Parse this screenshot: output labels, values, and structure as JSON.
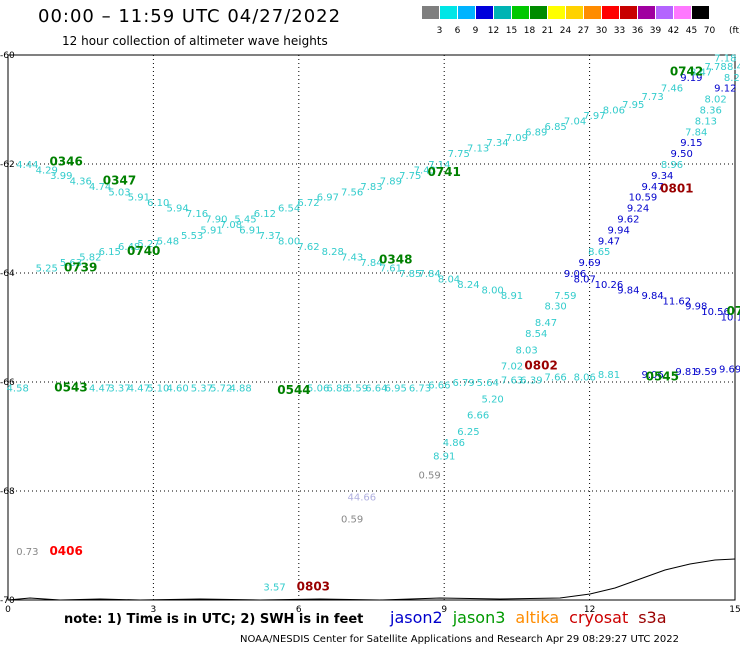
{
  "header": {
    "title": "00:00 – 11:59 UTC 04/27/2022",
    "subtitle": "12 hour collection of altimeter wave heights"
  },
  "legend": {
    "colors": [
      "#7f7f7f",
      "#00e6e6",
      "#00b4ff",
      "#0000dc",
      "#00b4b4",
      "#00c800",
      "#008c00",
      "#ffff00",
      "#ffd200",
      "#ff8c00",
      "#ff0000",
      "#c80000",
      "#a000a0",
      "#b464ff",
      "#ff78ff",
      "#000000"
    ],
    "labels": [
      "3",
      "6",
      "9",
      "12",
      "15",
      "18",
      "21",
      "24",
      "27",
      "30",
      "33",
      "36",
      "39",
      "42",
      "45",
      "70"
    ],
    "unit": "(ft)"
  },
  "map": {
    "x_ticks": [
      "0",
      "3",
      "6",
      "9",
      "12",
      "15"
    ],
    "y_ticks": [
      "-60",
      "-62",
      "-64",
      "-66",
      "-68",
      "-70"
    ],
    "point_colors": {
      "cyan": "#33cccc",
      "blue": "#0000cc",
      "gray": "#888888",
      "lavender": "#b0b0e0",
      "green": "#008000",
      "darkred": "#990000",
      "red": "#ff0000"
    },
    "points": [
      {
        "t": "4.44",
        "lon": 0.4,
        "lat": -62.0,
        "c": "cyan"
      },
      {
        "t": "4.29",
        "lon": 0.8,
        "lat": -62.1,
        "c": "cyan"
      },
      {
        "t": "3.99",
        "lon": 1.1,
        "lat": -62.2,
        "c": "cyan"
      },
      {
        "t": "4.36",
        "lon": 1.5,
        "lat": -62.3,
        "c": "cyan"
      },
      {
        "t": "4.74",
        "lon": 1.9,
        "lat": -62.4,
        "c": "cyan"
      },
      {
        "t": "5.03",
        "lon": 2.3,
        "lat": -62.5,
        "c": "cyan"
      },
      {
        "t": "5.91",
        "lon": 2.7,
        "lat": -62.6,
        "c": "cyan"
      },
      {
        "t": "6.10",
        "lon": 3.1,
        "lat": -62.7,
        "c": "cyan"
      },
      {
        "t": "5.94",
        "lon": 3.5,
        "lat": -62.8,
        "c": "cyan"
      },
      {
        "t": "7.16",
        "lon": 3.9,
        "lat": -62.9,
        "c": "cyan"
      },
      {
        "t": "7.90",
        "lon": 4.3,
        "lat": -63.0,
        "c": "cyan"
      },
      {
        "t": "7.08",
        "lon": 4.6,
        "lat": -63.1,
        "c": "cyan"
      },
      {
        "t": "6.91",
        "lon": 5.0,
        "lat": -63.2,
        "c": "cyan"
      },
      {
        "t": "7.37",
        "lon": 5.4,
        "lat": -63.3,
        "c": "cyan"
      },
      {
        "t": "8.00",
        "lon": 5.8,
        "lat": -63.4,
        "c": "cyan"
      },
      {
        "t": "7.62",
        "lon": 6.2,
        "lat": -63.5,
        "c": "cyan"
      },
      {
        "t": "8.28",
        "lon": 6.7,
        "lat": -63.6,
        "c": "cyan"
      },
      {
        "t": "7.43",
        "lon": 7.1,
        "lat": -63.7,
        "c": "cyan"
      },
      {
        "t": "7.84",
        "lon": 7.5,
        "lat": -63.8,
        "c": "cyan"
      },
      {
        "t": "7.61",
        "lon": 7.9,
        "lat": -63.9,
        "c": "cyan"
      },
      {
        "t": "7.85",
        "lon": 8.3,
        "lat": -64.0,
        "c": "cyan"
      },
      {
        "t": "7.84",
        "lon": 8.7,
        "lat": -64.0,
        "c": "cyan"
      },
      {
        "t": "8.04",
        "lon": 9.1,
        "lat": -64.1,
        "c": "cyan"
      },
      {
        "t": "8.24",
        "lon": 9.5,
        "lat": -64.2,
        "c": "cyan"
      },
      {
        "t": "8.00",
        "lon": 10.0,
        "lat": -64.3,
        "c": "cyan"
      },
      {
        "t": "8.91",
        "lon": 10.4,
        "lat": -64.4,
        "c": "cyan"
      },
      {
        "t": "5.25",
        "lon": 0.8,
        "lat": -63.9,
        "c": "cyan"
      },
      {
        "t": "5.63",
        "lon": 1.3,
        "lat": -63.8,
        "c": "cyan"
      },
      {
        "t": "5.82",
        "lon": 1.7,
        "lat": -63.7,
        "c": "cyan"
      },
      {
        "t": "6.15",
        "lon": 2.1,
        "lat": -63.6,
        "c": "cyan"
      },
      {
        "t": "6.48",
        "lon": 2.5,
        "lat": -63.5,
        "c": "cyan"
      },
      {
        "t": "5.27",
        "lon": 2.9,
        "lat": -63.45,
        "c": "cyan"
      },
      {
        "t": "5.48",
        "lon": 3.3,
        "lat": -63.4,
        "c": "cyan"
      },
      {
        "t": "5.53",
        "lon": 3.8,
        "lat": -63.3,
        "c": "cyan"
      },
      {
        "t": "5.91",
        "lon": 4.2,
        "lat": -63.2,
        "c": "cyan"
      },
      {
        "t": "5.45",
        "lon": 4.9,
        "lat": -63.0,
        "c": "cyan"
      },
      {
        "t": "6.12",
        "lon": 5.3,
        "lat": -62.9,
        "c": "cyan"
      },
      {
        "t": "6.54",
        "lon": 5.8,
        "lat": -62.8,
        "c": "cyan"
      },
      {
        "t": "6.72",
        "lon": 6.2,
        "lat": -62.7,
        "c": "cyan"
      },
      {
        "t": "6.97",
        "lon": 6.6,
        "lat": -62.6,
        "c": "cyan"
      },
      {
        "t": "7.56",
        "lon": 7.1,
        "lat": -62.5,
        "c": "cyan"
      },
      {
        "t": "7.83",
        "lon": 7.5,
        "lat": -62.4,
        "c": "cyan"
      },
      {
        "t": "7.89",
        "lon": 7.9,
        "lat": -62.3,
        "c": "cyan"
      },
      {
        "t": "7.75",
        "lon": 8.3,
        "lat": -62.2,
        "c": "cyan"
      },
      {
        "t": "7.43",
        "lon": 8.6,
        "lat": -62.1,
        "c": "cyan"
      },
      {
        "t": "7.14",
        "lon": 8.9,
        "lat": -62.0,
        "c": "cyan"
      },
      {
        "t": "7.75",
        "lon": 9.3,
        "lat": -61.8,
        "c": "cyan"
      },
      {
        "t": "7.13",
        "lon": 9.7,
        "lat": -61.7,
        "c": "cyan"
      },
      {
        "t": "7.34",
        "lon": 10.1,
        "lat": -61.6,
        "c": "cyan"
      },
      {
        "t": "7.09",
        "lon": 10.5,
        "lat": -61.5,
        "c": "cyan"
      },
      {
        "t": "6.89",
        "lon": 10.9,
        "lat": -61.4,
        "c": "cyan"
      },
      {
        "t": "6.85",
        "lon": 11.3,
        "lat": -61.3,
        "c": "cyan"
      },
      {
        "t": "7.04",
        "lon": 11.7,
        "lat": -61.2,
        "c": "cyan"
      },
      {
        "t": "7.97",
        "lon": 12.1,
        "lat": -61.1,
        "c": "cyan"
      },
      {
        "t": "8.06",
        "lon": 12.5,
        "lat": -61.0,
        "c": "cyan"
      },
      {
        "t": "7.95",
        "lon": 12.9,
        "lat": -60.9,
        "c": "cyan"
      },
      {
        "t": "7.73",
        "lon": 13.3,
        "lat": -60.75,
        "c": "cyan"
      },
      {
        "t": "7.46",
        "lon": 13.7,
        "lat": -60.6,
        "c": "cyan"
      },
      {
        "t": "9.19",
        "lon": 14.1,
        "lat": -60.4,
        "c": "blue"
      },
      {
        "t": "8.47",
        "lon": 14.3,
        "lat": -60.3,
        "c": "cyan"
      },
      {
        "t": "7.78",
        "lon": 14.6,
        "lat": -60.2,
        "c": "cyan"
      },
      {
        "t": "7.18",
        "lon": 14.8,
        "lat": -60.05,
        "c": "cyan"
      },
      {
        "t": "8.4",
        "lon": 15.0,
        "lat": -60.2,
        "c": "cyan"
      },
      {
        "t": "8.29",
        "lon": 15.0,
        "lat": -60.4,
        "c": "cyan"
      },
      {
        "t": "9.12",
        "lon": 14.8,
        "lat": -60.6,
        "c": "blue"
      },
      {
        "t": "8.02",
        "lon": 14.6,
        "lat": -60.8,
        "c": "cyan"
      },
      {
        "t": "8.36",
        "lon": 14.5,
        "lat": -61.0,
        "c": "cyan"
      },
      {
        "t": "8.13",
        "lon": 14.4,
        "lat": -61.2,
        "c": "cyan"
      },
      {
        "t": "7.84",
        "lon": 14.2,
        "lat": -61.4,
        "c": "cyan"
      },
      {
        "t": "9.15",
        "lon": 14.1,
        "lat": -61.6,
        "c": "blue"
      },
      {
        "t": "9.50",
        "lon": 13.9,
        "lat": -61.8,
        "c": "blue"
      },
      {
        "t": "8.96",
        "lon": 13.7,
        "lat": -62.0,
        "c": "cyan"
      },
      {
        "t": "9.34",
        "lon": 13.5,
        "lat": -62.2,
        "c": "blue"
      },
      {
        "t": "9.47",
        "lon": 13.3,
        "lat": -62.4,
        "c": "blue"
      },
      {
        "t": "10.59",
        "lon": 13.1,
        "lat": -62.6,
        "c": "blue"
      },
      {
        "t": "9.24",
        "lon": 13.0,
        "lat": -62.8,
        "c": "blue"
      },
      {
        "t": "9.62",
        "lon": 12.8,
        "lat": -63.0,
        "c": "blue"
      },
      {
        "t": "9.94",
        "lon": 12.6,
        "lat": -63.2,
        "c": "blue"
      },
      {
        "t": "9.47",
        "lon": 12.4,
        "lat": -63.4,
        "c": "blue"
      },
      {
        "t": "8.65",
        "lon": 12.2,
        "lat": -63.6,
        "c": "cyan"
      },
      {
        "t": "9.69",
        "lon": 12.0,
        "lat": -63.8,
        "c": "blue"
      },
      {
        "t": "9.06",
        "lon": 11.7,
        "lat": -64.0,
        "c": "blue"
      },
      {
        "t": "8.07",
        "lon": 11.9,
        "lat": -64.1,
        "c": "blue"
      },
      {
        "t": "10.26",
        "lon": 12.4,
        "lat": -64.2,
        "c": "blue"
      },
      {
        "t": "9.84",
        "lon": 12.8,
        "lat": -64.3,
        "c": "blue"
      },
      {
        "t": "9.84",
        "lon": 13.3,
        "lat": -64.4,
        "c": "blue"
      },
      {
        "t": "11.62",
        "lon": 13.8,
        "lat": -64.5,
        "c": "blue"
      },
      {
        "t": "9.98",
        "lon": 14.2,
        "lat": -64.6,
        "c": "blue"
      },
      {
        "t": "10.56",
        "lon": 14.6,
        "lat": -64.7,
        "c": "blue"
      },
      {
        "t": "10.16",
        "lon": 15.0,
        "lat": -64.8,
        "c": "blue"
      },
      {
        "t": "7.59",
        "lon": 11.5,
        "lat": -64.4,
        "c": "cyan"
      },
      {
        "t": "8.30",
        "lon": 11.3,
        "lat": -64.6,
        "c": "cyan"
      },
      {
        "t": "8.47",
        "lon": 11.1,
        "lat": -64.9,
        "c": "cyan"
      },
      {
        "t": "8.54",
        "lon": 10.9,
        "lat": -65.1,
        "c": "cyan"
      },
      {
        "t": "8.03",
        "lon": 10.7,
        "lat": -65.4,
        "c": "cyan"
      },
      {
        "t": "7.02",
        "lon": 10.4,
        "lat": -65.7,
        "c": "cyan"
      },
      {
        "t": "5.20",
        "lon": 10.0,
        "lat": -66.3,
        "c": "cyan"
      },
      {
        "t": "6.66",
        "lon": 9.7,
        "lat": -66.6,
        "c": "cyan"
      },
      {
        "t": "6.25",
        "lon": 9.5,
        "lat": -66.9,
        "c": "cyan"
      },
      {
        "t": "4.86",
        "lon": 9.2,
        "lat": -67.1,
        "c": "cyan"
      },
      {
        "t": "8.91",
        "lon": 9.0,
        "lat": -67.35,
        "c": "cyan"
      },
      {
        "t": "0.59",
        "lon": 8.7,
        "lat": -67.7,
        "c": "gray"
      },
      {
        "t": "4.58",
        "lon": 0.2,
        "lat": -66.1,
        "c": "cyan"
      },
      {
        "t": "4.47",
        "lon": 1.9,
        "lat": -66.1,
        "c": "cyan"
      },
      {
        "t": "3.37",
        "lon": 2.3,
        "lat": -66.1,
        "c": "cyan"
      },
      {
        "t": "4.47",
        "lon": 2.7,
        "lat": -66.1,
        "c": "cyan"
      },
      {
        "t": "5.10",
        "lon": 3.1,
        "lat": -66.1,
        "c": "cyan"
      },
      {
        "t": "4.60",
        "lon": 3.5,
        "lat": -66.1,
        "c": "cyan"
      },
      {
        "t": "5.37",
        "lon": 4.0,
        "lat": -66.1,
        "c": "cyan"
      },
      {
        "t": "5.72",
        "lon": 4.4,
        "lat": -66.1,
        "c": "cyan"
      },
      {
        "t": "4.88",
        "lon": 4.8,
        "lat": -66.1,
        "c": "cyan"
      },
      {
        "t": "5.06",
        "lon": 6.4,
        "lat": -66.1,
        "c": "cyan"
      },
      {
        "t": "6.88",
        "lon": 6.8,
        "lat": -66.1,
        "c": "cyan"
      },
      {
        "t": "5.59",
        "lon": 7.2,
        "lat": -66.1,
        "c": "cyan"
      },
      {
        "t": "6.64",
        "lon": 7.6,
        "lat": -66.1,
        "c": "cyan"
      },
      {
        "t": "6.95",
        "lon": 8.0,
        "lat": -66.1,
        "c": "cyan"
      },
      {
        "t": "6.73",
        "lon": 8.5,
        "lat": -66.1,
        "c": "cyan"
      },
      {
        "t": "6.66",
        "lon": 8.9,
        "lat": -66.05,
        "c": "cyan"
      },
      {
        "t": "6.79",
        "lon": 9.4,
        "lat": -66.0,
        "c": "cyan"
      },
      {
        "t": "5.64",
        "lon": 9.9,
        "lat": -66.0,
        "c": "cyan"
      },
      {
        "t": "7.63",
        "lon": 10.4,
        "lat": -65.95,
        "c": "cyan"
      },
      {
        "t": "6.39",
        "lon": 10.8,
        "lat": -65.95,
        "c": "cyan"
      },
      {
        "t": "7.66",
        "lon": 11.3,
        "lat": -65.9,
        "c": "cyan"
      },
      {
        "t": "8.06",
        "lon": 11.9,
        "lat": -65.9,
        "c": "cyan"
      },
      {
        "t": "8.81",
        "lon": 12.4,
        "lat": -65.85,
        "c": "cyan"
      },
      {
        "t": "9.06",
        "lon": 13.3,
        "lat": -65.85,
        "c": "blue"
      },
      {
        "t": "9.81",
        "lon": 14.0,
        "lat": -65.8,
        "c": "blue"
      },
      {
        "t": "9.59",
        "lon": 14.4,
        "lat": -65.8,
        "c": "blue"
      },
      {
        "t": "9.69",
        "lon": 14.9,
        "lat": -65.75,
        "c": "blue"
      },
      {
        "t": "44.66",
        "lon": 7.3,
        "lat": -68.1,
        "c": "lavender"
      },
      {
        "t": "0.59",
        "lon": 7.1,
        "lat": -68.5,
        "c": "gray"
      },
      {
        "t": "0.73",
        "lon": 0.4,
        "lat": -69.1,
        "c": "gray"
      },
      {
        "t": "3.57",
        "lon": 5.5,
        "lat": -69.75,
        "c": "cyan"
      },
      {
        "t": "0346",
        "lon": 1.2,
        "lat": -61.95,
        "c": "green",
        "b": true
      },
      {
        "t": "0347",
        "lon": 2.3,
        "lat": -62.3,
        "c": "green",
        "b": true
      },
      {
        "t": "0739",
        "lon": 1.5,
        "lat": -63.9,
        "c": "green",
        "b": true
      },
      {
        "t": "0740",
        "lon": 2.8,
        "lat": -63.6,
        "c": "green",
        "b": true
      },
      {
        "t": "0741",
        "lon": 9.0,
        "lat": -62.15,
        "c": "green",
        "b": true
      },
      {
        "t": "0348",
        "lon": 8.0,
        "lat": -63.75,
        "c": "green",
        "b": true
      },
      {
        "t": "0742",
        "lon": 14.0,
        "lat": -60.3,
        "c": "green",
        "b": true
      },
      {
        "t": "0801",
        "lon": 13.8,
        "lat": -62.45,
        "c": "darkred",
        "b": true
      },
      {
        "t": "0802",
        "lon": 11.0,
        "lat": -65.7,
        "c": "darkred",
        "b": true
      },
      {
        "t": "0543",
        "lon": 1.3,
        "lat": -66.1,
        "c": "green",
        "b": true
      },
      {
        "t": "0544",
        "lon": 5.9,
        "lat": -66.15,
        "c": "green",
        "b": true
      },
      {
        "t": "0545",
        "lon": 13.5,
        "lat": -65.9,
        "c": "green",
        "b": true
      },
      {
        "t": "0406",
        "lon": 1.2,
        "lat": -69.1,
        "c": "red",
        "b": true
      },
      {
        "t": "0803",
        "lon": 6.3,
        "lat": -69.75,
        "c": "darkred",
        "b": true
      },
      {
        "t": "07",
        "lon": 15.0,
        "lat": -64.7,
        "c": "green",
        "b": true
      }
    ]
  },
  "footer": {
    "note": "note:  1) Time is in UTC;  2) SWH is in feet",
    "satellites": [
      {
        "name": "jason2",
        "color": "#0000cc"
      },
      {
        "name": "jason3",
        "color": "#009900"
      },
      {
        "name": "altika",
        "color": "#ff8c00"
      },
      {
        "name": "cryosat",
        "color": "#cc0000"
      },
      {
        "name": "s3a",
        "color": "#990000"
      }
    ],
    "credit": "NOAA/NESDIS Center for Satellite Applications and Research     Apr 29 08:29:27 UTC 2022"
  }
}
